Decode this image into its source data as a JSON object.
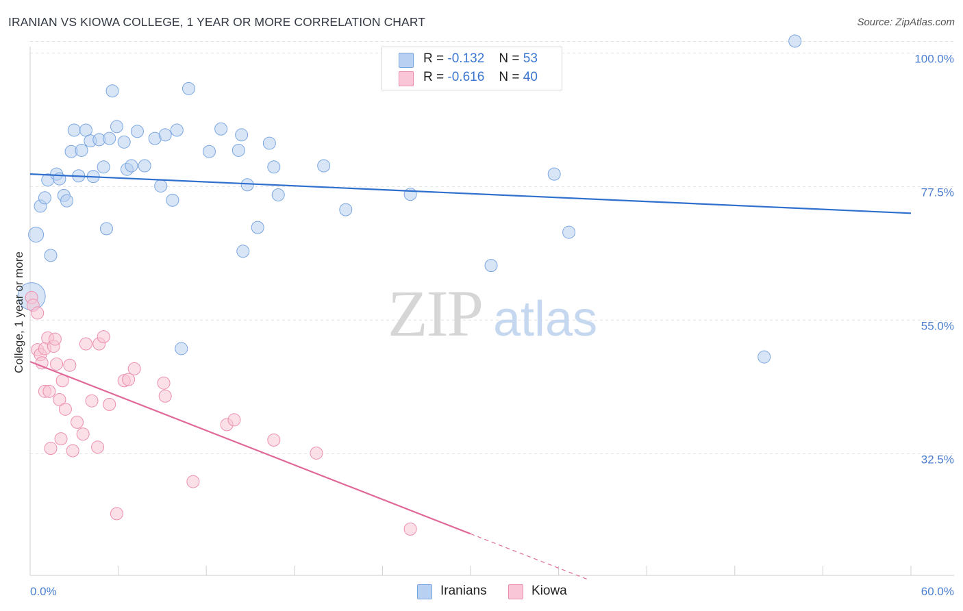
{
  "title": "IRANIAN VS KIOWA COLLEGE, 1 YEAR OR MORE CORRELATION CHART",
  "source": "Source: ZipAtlas.com",
  "watermark": {
    "zip": "ZIP",
    "atlas": "atlas"
  },
  "legend": {
    "rows": [
      {
        "r_label": "R =",
        "r_value": "-0.132",
        "n_label": "N =",
        "n_value": "53"
      },
      {
        "r_label": "R =",
        "r_value": "-0.616",
        "n_label": "N =",
        "n_value": "40"
      }
    ]
  },
  "bottom_legend": {
    "iranians": "Iranians",
    "kiowa": "Kiowa"
  },
  "colors": {
    "iranians_fill": "#b8d0f1",
    "iranians_stroke": "#7aa6e0",
    "iranians_line": "#2f6fcd",
    "kiowa_fill": "#f8c6d6",
    "kiowa_stroke": "#ec8fae",
    "kiowa_line": "#e0699a"
  },
  "chart_data": {
    "type": "scatter",
    "title": "IRANIAN VS KIOWA COLLEGE, 1 YEAR OR MORE CORRELATION CHART",
    "xlabel": "",
    "ylabel": "College, 1 year or more",
    "xlim": [
      0,
      60
    ],
    "ylim": [
      12,
      102
    ],
    "x_tick_labels": [
      "0.0%",
      "60.0%"
    ],
    "y_ticks": [
      32.5,
      55.0,
      77.5,
      100.0
    ],
    "y_tick_labels": [
      "32.5%",
      "55.0%",
      "77.5%",
      "100.0%"
    ],
    "series": [
      {
        "name": "Iranians",
        "R": -0.132,
        "N": 53,
        "trend": {
          "x": [
            0,
            60
          ],
          "y": [
            79.6,
            73.0
          ]
        },
        "points": [
          {
            "x": 0.1,
            "y": 59.0,
            "s": 3
          },
          {
            "x": 0.4,
            "y": 69.4,
            "s": 2
          },
          {
            "x": 0.7,
            "y": 74.2,
            "s": 1
          },
          {
            "x": 1.0,
            "y": 75.6,
            "s": 1
          },
          {
            "x": 1.2,
            "y": 78.6,
            "s": 1
          },
          {
            "x": 1.4,
            "y": 65.9,
            "s": 1
          },
          {
            "x": 1.8,
            "y": 79.6,
            "s": 1
          },
          {
            "x": 2.0,
            "y": 78.8,
            "s": 1
          },
          {
            "x": 2.3,
            "y": 76.0,
            "s": 1
          },
          {
            "x": 2.5,
            "y": 75.1,
            "s": 1
          },
          {
            "x": 2.8,
            "y": 83.4,
            "s": 1
          },
          {
            "x": 3.0,
            "y": 87.0,
            "s": 1
          },
          {
            "x": 3.3,
            "y": 79.3,
            "s": 1
          },
          {
            "x": 3.5,
            "y": 83.6,
            "s": 1
          },
          {
            "x": 3.8,
            "y": 87.0,
            "s": 1
          },
          {
            "x": 4.1,
            "y": 85.2,
            "s": 1
          },
          {
            "x": 4.3,
            "y": 79.2,
            "s": 1
          },
          {
            "x": 4.7,
            "y": 85.4,
            "s": 1
          },
          {
            "x": 5.0,
            "y": 80.8,
            "s": 1
          },
          {
            "x": 5.2,
            "y": 70.4,
            "s": 1
          },
          {
            "x": 5.4,
            "y": 85.6,
            "s": 1
          },
          {
            "x": 5.6,
            "y": 93.6,
            "s": 1
          },
          {
            "x": 5.9,
            "y": 87.6,
            "s": 1
          },
          {
            "x": 6.4,
            "y": 85.0,
            "s": 1
          },
          {
            "x": 6.6,
            "y": 80.4,
            "s": 1
          },
          {
            "x": 6.9,
            "y": 81.0,
            "s": 1
          },
          {
            "x": 7.3,
            "y": 86.8,
            "s": 1
          },
          {
            "x": 7.8,
            "y": 81.0,
            "s": 1
          },
          {
            "x": 8.5,
            "y": 85.6,
            "s": 1
          },
          {
            "x": 8.9,
            "y": 77.6,
            "s": 1
          },
          {
            "x": 9.2,
            "y": 86.2,
            "s": 1
          },
          {
            "x": 9.7,
            "y": 75.2,
            "s": 1
          },
          {
            "x": 10.0,
            "y": 87.0,
            "s": 1
          },
          {
            "x": 10.3,
            "y": 50.2,
            "s": 1
          },
          {
            "x": 10.8,
            "y": 94.0,
            "s": 1
          },
          {
            "x": 12.2,
            "y": 83.4,
            "s": 1
          },
          {
            "x": 13.0,
            "y": 87.2,
            "s": 1
          },
          {
            "x": 14.2,
            "y": 83.6,
            "s": 1
          },
          {
            "x": 14.4,
            "y": 86.2,
            "s": 1
          },
          {
            "x": 14.5,
            "y": 66.6,
            "s": 1
          },
          {
            "x": 14.8,
            "y": 77.8,
            "s": 1
          },
          {
            "x": 15.5,
            "y": 70.6,
            "s": 1
          },
          {
            "x": 16.3,
            "y": 84.8,
            "s": 1
          },
          {
            "x": 16.6,
            "y": 80.8,
            "s": 1
          },
          {
            "x": 16.9,
            "y": 76.1,
            "s": 1
          },
          {
            "x": 20.0,
            "y": 81.0,
            "s": 1
          },
          {
            "x": 21.5,
            "y": 73.6,
            "s": 1
          },
          {
            "x": 25.9,
            "y": 76.2,
            "s": 1
          },
          {
            "x": 31.4,
            "y": 64.2,
            "s": 1
          },
          {
            "x": 35.7,
            "y": 79.6,
            "s": 1
          },
          {
            "x": 36.7,
            "y": 69.8,
            "s": 1
          },
          {
            "x": 50.0,
            "y": 48.8,
            "s": 1
          },
          {
            "x": 52.1,
            "y": 102.0,
            "s": 1
          }
        ]
      },
      {
        "name": "Kiowa",
        "R": -0.616,
        "N": 40,
        "trend": {
          "x": [
            0,
            30.0
          ],
          "y": [
            48.0,
            19.0
          ],
          "dashed_to": {
            "x": 38.0,
            "y": 11.3
          }
        },
        "points": [
          {
            "x": 0.1,
            "y": 58.8
          },
          {
            "x": 0.2,
            "y": 57.5
          },
          {
            "x": 0.5,
            "y": 56.2
          },
          {
            "x": 0.5,
            "y": 50.0
          },
          {
            "x": 0.7,
            "y": 49.2
          },
          {
            "x": 0.8,
            "y": 47.8
          },
          {
            "x": 1.0,
            "y": 50.2
          },
          {
            "x": 1.0,
            "y": 43.0
          },
          {
            "x": 1.2,
            "y": 52.0
          },
          {
            "x": 1.3,
            "y": 43.0
          },
          {
            "x": 1.4,
            "y": 33.4
          },
          {
            "x": 1.6,
            "y": 50.6
          },
          {
            "x": 1.7,
            "y": 51.8
          },
          {
            "x": 1.8,
            "y": 47.6
          },
          {
            "x": 2.0,
            "y": 41.6
          },
          {
            "x": 2.1,
            "y": 35.0
          },
          {
            "x": 2.2,
            "y": 44.8
          },
          {
            "x": 2.4,
            "y": 40.0
          },
          {
            "x": 2.7,
            "y": 47.4
          },
          {
            "x": 2.9,
            "y": 33.0
          },
          {
            "x": 3.2,
            "y": 37.8
          },
          {
            "x": 3.6,
            "y": 35.8
          },
          {
            "x": 3.8,
            "y": 51.0
          },
          {
            "x": 4.2,
            "y": 41.4
          },
          {
            "x": 4.6,
            "y": 33.6
          },
          {
            "x": 4.7,
            "y": 51.0
          },
          {
            "x": 5.0,
            "y": 52.2
          },
          {
            "x": 5.4,
            "y": 40.8
          },
          {
            "x": 5.9,
            "y": 22.4
          },
          {
            "x": 6.4,
            "y": 44.8
          },
          {
            "x": 6.7,
            "y": 45.0
          },
          {
            "x": 7.1,
            "y": 46.8
          },
          {
            "x": 9.1,
            "y": 44.4
          },
          {
            "x": 9.2,
            "y": 42.2
          },
          {
            "x": 11.1,
            "y": 27.8
          },
          {
            "x": 13.4,
            "y": 37.4
          },
          {
            "x": 13.9,
            "y": 38.2
          },
          {
            "x": 16.6,
            "y": 34.8
          },
          {
            "x": 19.5,
            "y": 32.6
          },
          {
            "x": 25.9,
            "y": 19.8
          }
        ]
      }
    ]
  }
}
